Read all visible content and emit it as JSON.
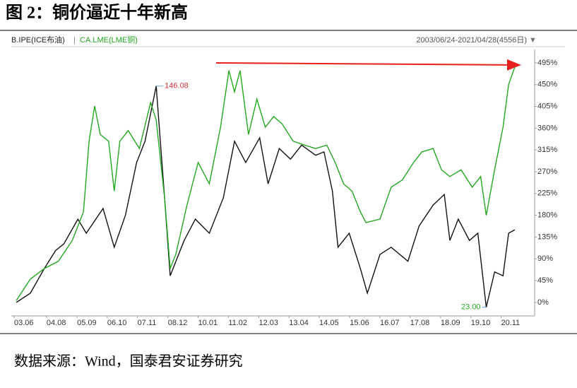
{
  "title": "图 2：铜价逼近十年新高",
  "source": "数据来源：Wind，国泰君安证券研究",
  "chart_data": {
    "type": "line",
    "date_range": "2003/06/24-2021/04/28(4556日)",
    "xlim": [
      2003.37,
      2022.03
    ],
    "xticks": [
      {
        "value": 2003.42,
        "label": "03.06"
      },
      {
        "value": 2004.58,
        "label": "04.08"
      },
      {
        "value": 2005.67,
        "label": "05.09"
      },
      {
        "value": 2006.75,
        "label": "06.10"
      },
      {
        "value": 2007.83,
        "label": "07.11"
      },
      {
        "value": 2008.92,
        "label": "08.12"
      },
      {
        "value": 2010.0,
        "label": "10.01"
      },
      {
        "value": 2011.08,
        "label": "11.02"
      },
      {
        "value": 2012.17,
        "label": "12.03"
      },
      {
        "value": 2013.25,
        "label": "13.04"
      },
      {
        "value": 2014.33,
        "label": "14.05"
      },
      {
        "value": 2015.42,
        "label": "15.06"
      },
      {
        "value": 2016.5,
        "label": "16.07"
      },
      {
        "value": 2017.58,
        "label": "17.08"
      },
      {
        "value": 2018.67,
        "label": "18.09"
      },
      {
        "value": 2019.75,
        "label": "19.10"
      },
      {
        "value": 2020.83,
        "label": "20.11"
      }
    ],
    "ylim": [
      -25,
      508
    ],
    "yticks": [
      {
        "value": 0,
        "label": "0%"
      },
      {
        "value": 45,
        "label": "45%"
      },
      {
        "value": 90,
        "label": "90%"
      },
      {
        "value": 135,
        "label": "135%"
      },
      {
        "value": 180,
        "label": "180%"
      },
      {
        "value": 225,
        "label": "225%"
      },
      {
        "value": 270,
        "label": "270%"
      },
      {
        "value": 315,
        "label": "315%"
      },
      {
        "value": 360,
        "label": "360%"
      },
      {
        "value": 405,
        "label": "405%"
      },
      {
        "value": 450,
        "label": "450%"
      },
      {
        "value": 495,
        "label": "495%"
      }
    ],
    "series": [
      {
        "name": "B.IPE(ICE布油)",
        "color": "#111111",
        "x": [
          2003.5,
          2004.0,
          2004.5,
          2004.9,
          2005.2,
          2005.7,
          2006.0,
          2006.6,
          2007.0,
          2007.4,
          2007.8,
          2008.1,
          2008.5,
          2008.8,
          2009.0,
          2009.5,
          2009.9,
          2010.4,
          2010.9,
          2011.3,
          2011.7,
          2012.2,
          2012.5,
          2012.9,
          2013.3,
          2013.7,
          2014.2,
          2014.5,
          2014.8,
          2015.0,
          2015.4,
          2015.8,
          2016.05,
          2016.5,
          2016.9,
          2017.5,
          2017.9,
          2018.4,
          2018.8,
          2019.0,
          2019.3,
          2019.7,
          2020.0,
          2020.3,
          2020.6,
          2020.9,
          2021.1,
          2021.32
        ],
        "values": [
          0,
          19,
          70,
          107,
          121,
          172,
          143,
          194,
          114,
          180,
          289,
          333,
          447,
          216,
          55,
          128,
          172,
          143,
          216,
          333,
          289,
          340,
          245,
          318,
          296,
          325,
          304,
          311,
          230,
          114,
          143,
          70,
          19,
          99,
          114,
          85,
          158,
          201,
          223,
          128,
          172,
          128,
          143,
          -10,
          63,
          55,
          143,
          150
        ]
      },
      {
        "name": "CA.LME(LME铜)",
        "color": "#22a81e",
        "x": [
          2003.5,
          2004.0,
          2004.5,
          2005.0,
          2005.5,
          2005.9,
          2006.1,
          2006.3,
          2006.5,
          2006.8,
          2007.0,
          2007.2,
          2007.5,
          2007.9,
          2008.3,
          2008.5,
          2008.8,
          2009.0,
          2009.2,
          2009.6,
          2010.0,
          2010.4,
          2010.8,
          2011.1,
          2011.3,
          2011.5,
          2011.8,
          2012.1,
          2012.4,
          2012.7,
          2013.0,
          2013.4,
          2013.8,
          2014.2,
          2014.6,
          2014.9,
          2015.2,
          2015.5,
          2015.8,
          2016.0,
          2016.5,
          2016.9,
          2017.3,
          2017.7,
          2018.0,
          2018.4,
          2018.7,
          2019.0,
          2019.4,
          2019.8,
          2020.1,
          2020.3,
          2020.6,
          2020.9,
          2021.1,
          2021.32
        ],
        "values": [
          4,
          48,
          70,
          85,
          128,
          187,
          333,
          406,
          347,
          333,
          230,
          333,
          355,
          318,
          413,
          377,
          216,
          70,
          99,
          201,
          289,
          245,
          362,
          479,
          435,
          479,
          347,
          420,
          362,
          384,
          369,
          333,
          325,
          318,
          325,
          289,
          245,
          230,
          187,
          165,
          172,
          238,
          253,
          289,
          311,
          318,
          274,
          260,
          274,
          238,
          260,
          180,
          274,
          362,
          450,
          486
        ]
      }
    ],
    "annotations": [
      {
        "text": "146.08",
        "x": 2008.5,
        "y": 447,
        "color": "#e0303a"
      },
      {
        "text": "23.00",
        "x": 2020.3,
        "y": -10,
        "color": "#22a81e"
      }
    ]
  }
}
